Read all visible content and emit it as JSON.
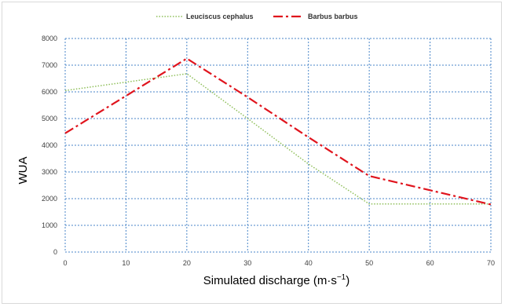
{
  "chart_data": {
    "type": "line",
    "x": [
      0,
      20,
      30,
      40,
      50,
      70
    ],
    "xticks": [
      "0",
      "10",
      "20",
      "30",
      "40",
      "50",
      "60",
      "70"
    ],
    "yticks": [
      "0",
      "1000",
      "2000",
      "3000",
      "4000",
      "5000",
      "6000",
      "7000",
      "8000"
    ],
    "xlim": [
      0,
      70
    ],
    "ylim": [
      0,
      8000
    ],
    "xlabel": "Simulated discharge (m·s",
    "xlabel_sup": "−1",
    "xlabel_end": ")",
    "ylabel": "WUA",
    "grid": true,
    "legend_position": "top-center",
    "series": [
      {
        "name": "Leuciscus cephalus",
        "values": [
          6050,
          6680,
          5000,
          3300,
          1800,
          1800
        ],
        "color": "#8fbf5a",
        "style": "dotted"
      },
      {
        "name": "Barbus barbus",
        "values": [
          4450,
          7250,
          5800,
          4300,
          2850,
          1780
        ],
        "color": "#e0141d",
        "style": "dash-dot"
      }
    ],
    "grid_color": "#4a86c8"
  }
}
